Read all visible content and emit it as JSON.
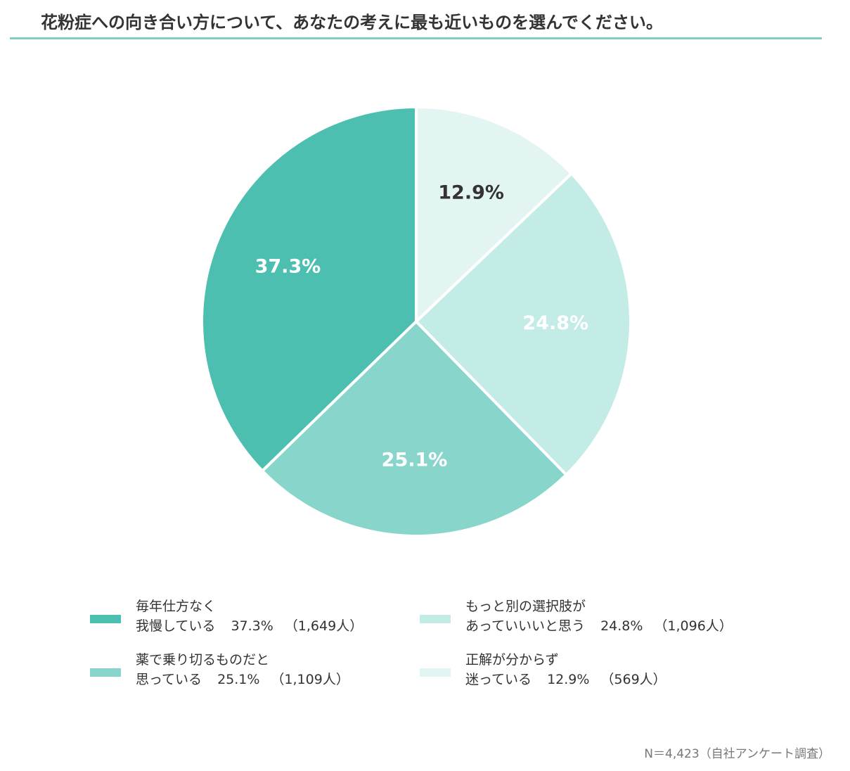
{
  "chart_data": {
    "type": "pie",
    "title": "花粉症への向き合い方について、あなたの考えに最も近いものを選んでください。",
    "categories": [
      "毎年仕方なく\n我慢している",
      "薬で乗り切るものだと\n思っている",
      "もっと別の選択肢が\nあっていいいと思う",
      "正解が分からず\n迷っている"
    ],
    "values": [
      37.3,
      25.1,
      24.8,
      12.9
    ],
    "value_labels": [
      "37.3%",
      "25.1%",
      "24.8%",
      "12.9%"
    ],
    "count_labels": [
      "（1,649人）",
      "（1,109人）",
      "（1,096人）",
      "（569人）"
    ],
    "colors": [
      "#4dbfb0",
      "#88d5cb",
      "#c4ece7",
      "#e2f5f3"
    ],
    "label_colors": [
      "#ffffff",
      "#ffffff",
      "#ffffff",
      "#333333"
    ],
    "note": "N＝4,423（自社アンケート調査）"
  }
}
